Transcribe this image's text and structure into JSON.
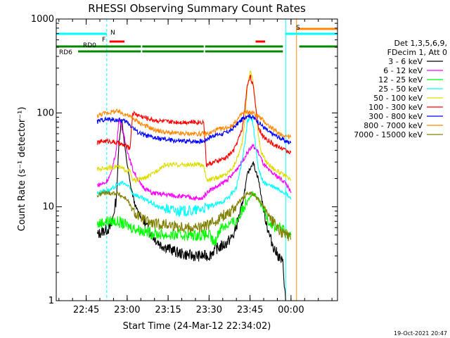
{
  "chart_data": {
    "type": "line",
    "title": "RHESSI Observing Summary Count Rates",
    "xlabel": "Start Time (24-Mar-12 22:34:02)",
    "ylabel": "Count Rate (s⁻¹ detector⁻¹)",
    "yscale": "log",
    "ylim": [
      1,
      1000
    ],
    "y_ticks": [
      1,
      10,
      100,
      1000
    ],
    "x_range_minutes": [
      0,
      103
    ],
    "x_ticks": [
      {
        "minute": 10.97,
        "label": "22:45"
      },
      {
        "minute": 25.97,
        "label": "23:00"
      },
      {
        "minute": 40.97,
        "label": "23:15"
      },
      {
        "minute": 55.97,
        "label": "23:30"
      },
      {
        "minute": 70.97,
        "label": "23:45"
      },
      {
        "minute": 85.97,
        "label": "00:00"
      }
    ],
    "legend_header": [
      "Det 1,3,5,6,9,",
      "FDecim 1, Att 0"
    ],
    "legend_position": "right",
    "series": [
      {
        "name": "3 - 6 keV",
        "color": "#000000",
        "points": [
          [
            15,
            5
          ],
          [
            17,
            5.5
          ],
          [
            20,
            6
          ],
          [
            22,
            12
          ],
          [
            23,
            50
          ],
          [
            24,
            90
          ],
          [
            25,
            45
          ],
          [
            27,
            18
          ],
          [
            29,
            10
          ],
          [
            32,
            7
          ],
          [
            35,
            5
          ],
          [
            38,
            4
          ],
          [
            42,
            3.5
          ],
          [
            45,
            3.2
          ],
          [
            50,
            3
          ],
          [
            53,
            3
          ],
          [
            56,
            3
          ],
          [
            58,
            3.5
          ],
          [
            62,
            4
          ],
          [
            65,
            5
          ],
          [
            68,
            10
          ],
          [
            70,
            22
          ],
          [
            72,
            30
          ],
          [
            74,
            20
          ],
          [
            76,
            9
          ],
          [
            78,
            5
          ],
          [
            80,
            3.5
          ],
          [
            83,
            2.5
          ],
          [
            84,
            1
          ]
        ]
      },
      {
        "name": "6 - 12 keV",
        "color": "#ff00ff",
        "points": [
          [
            15,
            17
          ],
          [
            18,
            18
          ],
          [
            20,
            22
          ],
          [
            22,
            40
          ],
          [
            23,
            90
          ],
          [
            24,
            70
          ],
          [
            26,
            40
          ],
          [
            28,
            25
          ],
          [
            31,
            17
          ],
          [
            35,
            14
          ],
          [
            40,
            13.5
          ],
          [
            45,
            13
          ],
          [
            50,
            12.5
          ],
          [
            53,
            12
          ],
          [
            56,
            15
          ],
          [
            60,
            17
          ],
          [
            64,
            21
          ],
          [
            68,
            30
          ],
          [
            70,
            38
          ],
          [
            72,
            45
          ],
          [
            74,
            38
          ],
          [
            76,
            28
          ],
          [
            78,
            24
          ],
          [
            80,
            22
          ],
          [
            82,
            20
          ],
          [
            84,
            18
          ],
          [
            86,
            14
          ]
        ]
      },
      {
        "name": "12 - 25 keV",
        "color": "#00ff00",
        "points": [
          [
            15,
            6.5
          ],
          [
            18,
            7
          ],
          [
            20,
            7
          ],
          [
            22,
            7
          ],
          [
            25,
            6.5
          ],
          [
            28,
            6
          ],
          [
            32,
            5.5
          ],
          [
            36,
            5.2
          ],
          [
            40,
            5
          ],
          [
            45,
            5
          ],
          [
            50,
            5
          ],
          [
            53,
            5
          ],
          [
            56,
            5
          ],
          [
            58,
            4
          ],
          [
            60,
            6
          ],
          [
            63,
            6.5
          ],
          [
            66,
            7
          ],
          [
            68,
            9
          ],
          [
            70,
            12
          ],
          [
            72,
            14
          ],
          [
            74,
            12
          ],
          [
            76,
            9
          ],
          [
            78,
            7
          ],
          [
            80,
            6
          ],
          [
            82,
            6
          ],
          [
            84,
            5.5
          ],
          [
            86,
            5
          ]
        ]
      },
      {
        "name": "25 - 50 keV",
        "color": "#00ffff",
        "points": [
          [
            15,
            14
          ],
          [
            18,
            15
          ],
          [
            20,
            15
          ],
          [
            22,
            17
          ],
          [
            24,
            18
          ],
          [
            26,
            17
          ],
          [
            28,
            14
          ],
          [
            30,
            13
          ],
          [
            32,
            12
          ],
          [
            35,
            11
          ],
          [
            37,
            10
          ],
          [
            40,
            9.5
          ],
          [
            45,
            9
          ],
          [
            50,
            9
          ],
          [
            53,
            9.5
          ],
          [
            56,
            10
          ],
          [
            60,
            11
          ],
          [
            63,
            12.5
          ],
          [
            66,
            16
          ],
          [
            68,
            30
          ],
          [
            69,
            45
          ],
          [
            70,
            80
          ],
          [
            71,
            95
          ],
          [
            72,
            80
          ],
          [
            73,
            45
          ],
          [
            74,
            25
          ],
          [
            76,
            18
          ],
          [
            78,
            17
          ],
          [
            80,
            16
          ],
          [
            82,
            15
          ],
          [
            84,
            14
          ],
          [
            86,
            12
          ]
        ]
      },
      {
        "name": "50 - 100 keV",
        "color": "#dddd00",
        "points": [
          [
            15,
            25
          ],
          [
            18,
            26
          ],
          [
            20,
            26
          ],
          [
            22,
            27
          ],
          [
            25,
            25
          ],
          [
            27,
            24
          ],
          [
            28,
            19
          ],
          [
            30,
            19.5
          ],
          [
            32,
            20
          ],
          [
            35,
            22
          ],
          [
            38,
            26
          ],
          [
            40,
            28
          ],
          [
            44,
            28
          ],
          [
            48,
            28
          ],
          [
            52,
            28
          ],
          [
            54,
            28
          ],
          [
            55,
            19
          ],
          [
            58,
            20
          ],
          [
            62,
            22
          ],
          [
            65,
            27
          ],
          [
            68,
            45
          ],
          [
            69,
            80
          ],
          [
            70,
            190
          ],
          [
            71,
            280
          ],
          [
            72,
            230
          ],
          [
            73,
            120
          ],
          [
            74,
            60
          ],
          [
            75,
            38
          ],
          [
            77,
            30
          ],
          [
            80,
            25
          ],
          [
            82,
            23
          ],
          [
            84,
            21
          ],
          [
            86,
            19
          ]
        ]
      },
      {
        "name": "100 - 300 keV",
        "color": "#ff0000",
        "points": [
          [
            15,
            48
          ],
          [
            17,
            50
          ],
          [
            20,
            50
          ],
          [
            22,
            48
          ],
          [
            25,
            45
          ],
          [
            27,
            42
          ],
          [
            28,
            100
          ],
          [
            30,
            95
          ],
          [
            32,
            90
          ],
          [
            35,
            85
          ],
          [
            38,
            82
          ],
          [
            42,
            80
          ],
          [
            46,
            80
          ],
          [
            50,
            80
          ],
          [
            54,
            80
          ],
          [
            55,
            28
          ],
          [
            58,
            30
          ],
          [
            62,
            33
          ],
          [
            65,
            40
          ],
          [
            68,
            65
          ],
          [
            69,
            110
          ],
          [
            70,
            200
          ],
          [
            71,
            250
          ],
          [
            72,
            200
          ],
          [
            73,
            120
          ],
          [
            74,
            70
          ],
          [
            76,
            55
          ],
          [
            78,
            50
          ],
          [
            80,
            45
          ],
          [
            82,
            43
          ],
          [
            84,
            40
          ],
          [
            86,
            38
          ]
        ]
      },
      {
        "name": "300 - 800 keV",
        "color": "#0000ff",
        "points": [
          [
            15,
            80
          ],
          [
            17,
            85
          ],
          [
            20,
            85
          ],
          [
            22,
            84
          ],
          [
            24,
            83
          ],
          [
            26,
            80
          ],
          [
            28,
            70
          ],
          [
            30,
            62
          ],
          [
            33,
            57
          ],
          [
            36,
            54
          ],
          [
            40,
            52
          ],
          [
            45,
            50
          ],
          [
            50,
            50
          ],
          [
            54,
            50
          ],
          [
            56,
            55
          ],
          [
            58,
            58
          ],
          [
            61,
            60
          ],
          [
            64,
            65
          ],
          [
            66,
            75
          ],
          [
            68,
            85
          ],
          [
            70,
            95
          ],
          [
            72,
            90
          ],
          [
            74,
            80
          ],
          [
            76,
            70
          ],
          [
            78,
            62
          ],
          [
            80,
            58
          ],
          [
            82,
            54
          ],
          [
            84,
            50
          ],
          [
            86,
            48
          ]
        ]
      },
      {
        "name": "800 - 7000 keV",
        "color": "#ff8800",
        "points": [
          [
            15,
            93
          ],
          [
            17,
            98
          ],
          [
            20,
            102
          ],
          [
            22,
            104
          ],
          [
            24,
            100
          ],
          [
            26,
            95
          ],
          [
            28,
            88
          ],
          [
            30,
            80
          ],
          [
            33,
            72
          ],
          [
            36,
            66
          ],
          [
            40,
            62
          ],
          [
            45,
            60
          ],
          [
            50,
            60
          ],
          [
            54,
            60
          ],
          [
            56,
            60
          ],
          [
            58,
            65
          ],
          [
            61,
            68
          ],
          [
            64,
            72
          ],
          [
            66,
            82
          ],
          [
            68,
            98
          ],
          [
            70,
            102
          ],
          [
            72,
            100
          ],
          [
            74,
            92
          ],
          [
            76,
            82
          ],
          [
            78,
            72
          ],
          [
            80,
            65
          ],
          [
            82,
            60
          ],
          [
            84,
            57
          ],
          [
            86,
            55
          ]
        ]
      },
      {
        "name": "7000 - 15000 keV",
        "color": "#808000",
        "points": [
          [
            15,
            13
          ],
          [
            17,
            14
          ],
          [
            20,
            14
          ],
          [
            22,
            14
          ],
          [
            24,
            13
          ],
          [
            26,
            12
          ],
          [
            28,
            9
          ],
          [
            30,
            8
          ],
          [
            33,
            7
          ],
          [
            36,
            6.5
          ],
          [
            40,
            6.5
          ],
          [
            45,
            6.2
          ],
          [
            50,
            6
          ],
          [
            53,
            6
          ],
          [
            56,
            6.5
          ],
          [
            58,
            7
          ],
          [
            61,
            8
          ],
          [
            64,
            9
          ],
          [
            66,
            10.5
          ],
          [
            68,
            12
          ],
          [
            70,
            14
          ],
          [
            72,
            13.5
          ],
          [
            74,
            12
          ],
          [
            76,
            10
          ],
          [
            78,
            8
          ],
          [
            80,
            6.5
          ],
          [
            82,
            5.5
          ],
          [
            84,
            5
          ],
          [
            86,
            4.5
          ]
        ]
      }
    ],
    "state_bars": [
      {
        "label": "N",
        "color": "#00ffff",
        "segments": [
          [
            0,
            18.5
          ],
          [
            84,
            103
          ]
        ],
        "level": "top"
      },
      {
        "label": "F",
        "color": "#ff0000",
        "segments": [
          [
            19.5,
            25
          ],
          [
            73,
            76.5
          ]
        ],
        "level": "flare"
      },
      {
        "label": "S",
        "color": "#ff8800",
        "segments": [
          [
            88,
            103
          ]
        ],
        "level": "saa"
      },
      {
        "label": "RD0",
        "color": "#008800",
        "segments": [
          [
            0,
            31
          ],
          [
            31.5,
            54
          ],
          [
            54.5,
            83
          ],
          [
            89,
            103
          ]
        ],
        "level": "rd0"
      },
      {
        "label": "RD6",
        "color": "#008800",
        "segments": [
          [
            8,
            31
          ],
          [
            31.5,
            54
          ],
          [
            54.5,
            83
          ]
        ],
        "level": "rd6"
      }
    ],
    "vertical_markers": [
      {
        "minute": 0,
        "color": "#00ffff",
        "style": "solid"
      },
      {
        "minute": 18.5,
        "color": "#00ffff",
        "style": "dashed"
      },
      {
        "minute": 84,
        "color": "#00ffff",
        "style": "solid"
      },
      {
        "minute": 88,
        "color": "#ff8800",
        "style": "solid"
      },
      {
        "minute": 103,
        "color": "#00ffff",
        "style": "dashed"
      }
    ]
  },
  "footer_timestamp": "19-Oct-2021 20:47"
}
